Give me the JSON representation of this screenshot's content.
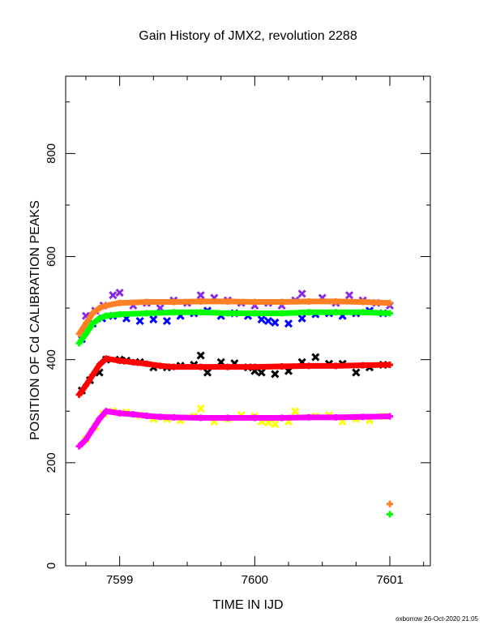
{
  "title": "Gain History of JMX2, revolution 2288",
  "footer": "oxborrow 26-Oct-2020 21:05",
  "chart_data": {
    "type": "scatter",
    "title": "Gain History of JMX2, revolution 2288",
    "xlabel": "TIME IN IJD",
    "ylabel": "POSITION OF Cd CALIBRATION PEAKS",
    "xlim": [
      7598.6,
      7601.3
    ],
    "ylim": [
      0,
      950
    ],
    "xticks": [
      7599,
      7600,
      7601
    ],
    "yticks": [
      0,
      200,
      400,
      600,
      800
    ],
    "grid": false,
    "series": [
      {
        "color": "#8a2be2",
        "marker": "x",
        "x": [
          7598.75,
          7598.82,
          7598.88,
          7598.95,
          7599.0,
          7599.1,
          7599.2,
          7599.3,
          7599.4,
          7599.5,
          7599.6,
          7599.7,
          7599.8,
          7599.9,
          7600.0,
          7600.1,
          7600.2,
          7600.3,
          7600.35,
          7600.5,
          7600.6,
          7600.7,
          7600.8,
          7600.9,
          7601.0
        ],
        "y": [
          485,
          495,
          505,
          525,
          530,
          505,
          510,
          500,
          515,
          510,
          525,
          520,
          515,
          510,
          505,
          510,
          505,
          515,
          528,
          520,
          510,
          525,
          515,
          510,
          505
        ]
      },
      {
        "color": "#0000ff",
        "marker": "x",
        "x": [
          7598.72,
          7598.8,
          7598.87,
          7598.95,
          7599.05,
          7599.15,
          7599.25,
          7599.35,
          7599.45,
          7599.55,
          7599.65,
          7599.75,
          7599.85,
          7599.95,
          7600.05,
          7600.1,
          7600.15,
          7600.25,
          7600.35,
          7600.45,
          7600.55,
          7600.65,
          7600.75,
          7600.85,
          7600.95
        ],
        "y": [
          440,
          470,
          480,
          485,
          480,
          475,
          478,
          475,
          485,
          490,
          495,
          485,
          490,
          485,
          478,
          475,
          472,
          470,
          480,
          488,
          490,
          485,
          490,
          495,
          490
        ]
      },
      {
        "color": "#ff7f24",
        "marker": "+",
        "x": [
          7598.7,
          7598.75,
          7598.8,
          7598.85,
          7598.9,
          7599.0,
          7599.2,
          7599.4,
          7599.6,
          7599.8,
          7600.0,
          7600.2,
          7600.4,
          7600.6,
          7600.8,
          7601.0,
          7601.0
        ],
        "y": [
          450,
          470,
          490,
          500,
          505,
          510,
          512,
          512,
          513,
          513,
          512,
          512,
          513,
          513,
          512,
          510,
          120
        ]
      },
      {
        "color": "#00ff00",
        "marker": "+",
        "x": [
          7598.7,
          7598.75,
          7598.8,
          7598.85,
          7598.9,
          7599.0,
          7599.2,
          7599.4,
          7599.6,
          7599.8,
          7600.0,
          7600.2,
          7600.4,
          7600.6,
          7600.8,
          7601.0,
          7601.0
        ],
        "y": [
          432,
          450,
          470,
          480,
          485,
          488,
          490,
          492,
          492,
          490,
          490,
          490,
          492,
          492,
          492,
          490,
          100
        ]
      },
      {
        "color": "#000000",
        "marker": "x",
        "x": [
          7598.72,
          7598.78,
          7598.85,
          7598.9,
          7599.0,
          7599.05,
          7599.15,
          7599.25,
          7599.35,
          7599.45,
          7599.55,
          7599.6,
          7599.65,
          7599.75,
          7599.85,
          7599.95,
          7600.0,
          7600.05,
          7600.15,
          7600.25,
          7600.35,
          7600.45,
          7600.55,
          7600.65,
          7600.75,
          7600.85,
          7600.95
        ],
        "y": [
          340,
          360,
          375,
          400,
          400,
          398,
          395,
          385,
          385,
          388,
          390,
          408,
          375,
          395,
          393,
          385,
          378,
          375,
          372,
          378,
          395,
          405,
          392,
          392,
          375,
          385,
          390
        ]
      },
      {
        "color": "#ff0000",
        "marker": "+",
        "x": [
          7598.7,
          7598.75,
          7598.8,
          7598.85,
          7598.9,
          7599.0,
          7599.1,
          7599.2,
          7599.3,
          7599.4,
          7599.6,
          7599.8,
          7600.0,
          7600.2,
          7600.4,
          7600.6,
          7600.8,
          7601.0
        ],
        "y": [
          332,
          350,
          370,
          390,
          402,
          398,
          395,
          392,
          388,
          386,
          386,
          386,
          386,
          387,
          388,
          388,
          389,
          390
        ]
      },
      {
        "color": "#ffff00",
        "marker": "x",
        "x": [
          7598.75,
          7598.82,
          7598.88,
          7598.95,
          7599.05,
          7599.15,
          7599.25,
          7599.35,
          7599.45,
          7599.55,
          7599.6,
          7599.7,
          7599.8,
          7599.9,
          7600.0,
          7600.05,
          7600.1,
          7600.15,
          7600.25,
          7600.3,
          7600.45,
          7600.55,
          7600.65,
          7600.75,
          7600.85,
          7600.95
        ],
        "y": [
          245,
          270,
          295,
          300,
          298,
          292,
          285,
          285,
          282,
          290,
          305,
          280,
          285,
          292,
          290,
          280,
          278,
          275,
          280,
          300,
          290,
          292,
          280,
          285,
          282,
          290
        ]
      },
      {
        "color": "#ff00ff",
        "marker": "+",
        "x": [
          7598.7,
          7598.75,
          7598.8,
          7598.85,
          7598.9,
          7599.0,
          7599.1,
          7599.2,
          7599.3,
          7599.4,
          7599.6,
          7599.8,
          7600.0,
          7600.2,
          7600.4,
          7600.6,
          7600.8,
          7601.0
        ],
        "y": [
          232,
          245,
          265,
          285,
          300,
          296,
          294,
          291,
          289,
          288,
          287,
          287,
          287,
          287,
          288,
          288,
          289,
          290
        ]
      }
    ]
  }
}
